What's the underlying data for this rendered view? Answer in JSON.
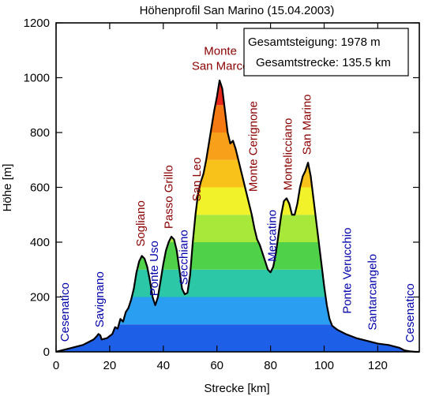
{
  "chart_data": {
    "type": "area",
    "title": "Höhenprofil San Marino (15.04.2003)",
    "xlabel": "Strecke [km]",
    "ylabel": "Höhe [m]",
    "xlim": [
      0,
      135.5
    ],
    "ylim": [
      0,
      1200
    ],
    "xticks": [
      0,
      20,
      40,
      60,
      80,
      100,
      120
    ],
    "yticks": [
      0,
      200,
      400,
      600,
      800,
      1000,
      1200
    ],
    "elevation_bands": [
      {
        "from": 0,
        "to": 100,
        "color": "#1E5FE8"
      },
      {
        "from": 100,
        "to": 200,
        "color": "#2A9EF0"
      },
      {
        "from": 200,
        "to": 300,
        "color": "#2CC7A6"
      },
      {
        "from": 300,
        "to": 400,
        "color": "#4FD24A"
      },
      {
        "from": 400,
        "to": 500,
        "color": "#A8E83A"
      },
      {
        "from": 500,
        "to": 600,
        "color": "#F2F22A"
      },
      {
        "from": 600,
        "to": 700,
        "color": "#F9C21A"
      },
      {
        "from": 700,
        "to": 800,
        "color": "#F8A01A"
      },
      {
        "from": 800,
        "to": 900,
        "color": "#F57A14"
      },
      {
        "from": 900,
        "to": 1000,
        "color": "#E8281C"
      }
    ],
    "profile": {
      "x": [
        0,
        4,
        6,
        8,
        10,
        12,
        14,
        15,
        15.8,
        16.5,
        17,
        19,
        21,
        22,
        23,
        24,
        25,
        26,
        27,
        28,
        29,
        30,
        31,
        32,
        33,
        34,
        35,
        36,
        37,
        38,
        39,
        40,
        41,
        42,
        43,
        44,
        45,
        46,
        47,
        48,
        49,
        50,
        51,
        52,
        53,
        54,
        55,
        56,
        57,
        58,
        59,
        60,
        61,
        62,
        63,
        64,
        65,
        66,
        67,
        68,
        69,
        70,
        71,
        72,
        73,
        74,
        75,
        76,
        77,
        78,
        79,
        80,
        81,
        82,
        83,
        84,
        85,
        86,
        87,
        88,
        89,
        90,
        91,
        92,
        93,
        94,
        95,
        96,
        97,
        98,
        99,
        100,
        101,
        102,
        103,
        105,
        108,
        112,
        116,
        120,
        124,
        128,
        130,
        132,
        134,
        135.5
      ],
      "y": [
        0,
        10,
        15,
        20,
        25,
        35,
        45,
        55,
        65,
        60,
        45,
        50,
        65,
        90,
        85,
        120,
        110,
        145,
        160,
        190,
        230,
        290,
        330,
        350,
        340,
        310,
        260,
        200,
        170,
        200,
        260,
        320,
        370,
        400,
        420,
        410,
        370,
        300,
        230,
        210,
        215,
        280,
        400,
        500,
        580,
        620,
        650,
        700,
        760,
        820,
        880,
        930,
        990,
        960,
        880,
        800,
        760,
        770,
        740,
        700,
        660,
        620,
        580,
        540,
        500,
        450,
        410,
        390,
        360,
        330,
        300,
        290,
        310,
        360,
        430,
        500,
        550,
        560,
        540,
        500,
        500,
        540,
        600,
        640,
        660,
        690,
        640,
        560,
        480,
        400,
        320,
        240,
        170,
        120,
        95,
        80,
        65,
        50,
        40,
        30,
        25,
        15,
        5,
        2,
        0,
        0
      ]
    },
    "places": [
      {
        "name": "Cesenatico",
        "x": 3.2,
        "y": 8,
        "color": "#0000aa"
      },
      {
        "name": "Savignano",
        "x": 16.2,
        "y": 60,
        "color": "#0000aa"
      },
      {
        "name": "Sogliano",
        "x": 31.5,
        "y": 355,
        "color": "#8b0000"
      },
      {
        "name": "Ponte Uso",
        "x": 36.5,
        "y": 175,
        "color": "#0000aa"
      },
      {
        "name": "Passo Grillo",
        "x": 42,
        "y": 420,
        "color": "#8b0000"
      },
      {
        "name": "Secchiano",
        "x": 47.5,
        "y": 215,
        "color": "#0000aa"
      },
      {
        "name": "San Leo",
        "x": 52.5,
        "y": 520,
        "color": "#8b0000"
      },
      {
        "name": "Monte\nSan Marco",
        "x": 61.3,
        "y": 1000,
        "color": "#8b0000"
      },
      {
        "name": "Monte Cerignone",
        "x": 73.5,
        "y": 555,
        "color": "#8b0000"
      },
      {
        "name": "Mercatino",
        "x": 80.5,
        "y": 300,
        "color": "#0000aa"
      },
      {
        "name": "Montelicciano",
        "x": 86.5,
        "y": 560,
        "color": "#8b0000"
      },
      {
        "name": "San Marino",
        "x": 93.5,
        "y": 690,
        "color": "#8b0000"
      },
      {
        "name": "Ponte Verucchio",
        "x": 108.5,
        "y": 110,
        "color": "#0000aa"
      },
      {
        "name": "Santarcangelo",
        "x": 118,
        "y": 50,
        "color": "#0000aa"
      },
      {
        "name": "Cesenatico",
        "x": 132,
        "y": 5,
        "color": "#0000aa"
      }
    ],
    "stats": {
      "gain": "Gesamtsteigung: 1978 m",
      "distance": "Gesamtstrecke: 135.5 km"
    }
  }
}
